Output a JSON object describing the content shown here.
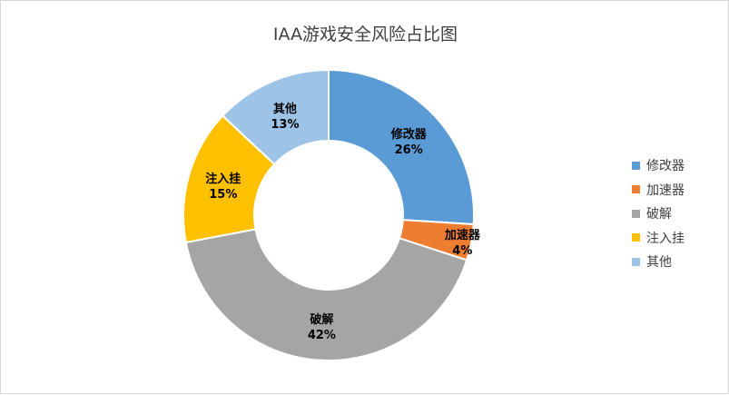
{
  "chart_data": {
    "type": "pie",
    "title": "IAA游戏安全风险占比图",
    "slices": [
      {
        "label": "修改器",
        "value": 26,
        "display": "26%",
        "color": "#5b9bd5"
      },
      {
        "label": "加速器",
        "value": 4,
        "display": "4%",
        "color": "#ed7d31"
      },
      {
        "label": "破解",
        "value": 42,
        "display": "42%",
        "color": "#a5a5a5"
      },
      {
        "label": "注入挂",
        "value": 15,
        "display": "15%",
        "color": "#ffc000"
      },
      {
        "label": "其他",
        "value": 13,
        "display": "13%",
        "color": "#9dc3e6"
      }
    ],
    "legend_position": "right"
  }
}
